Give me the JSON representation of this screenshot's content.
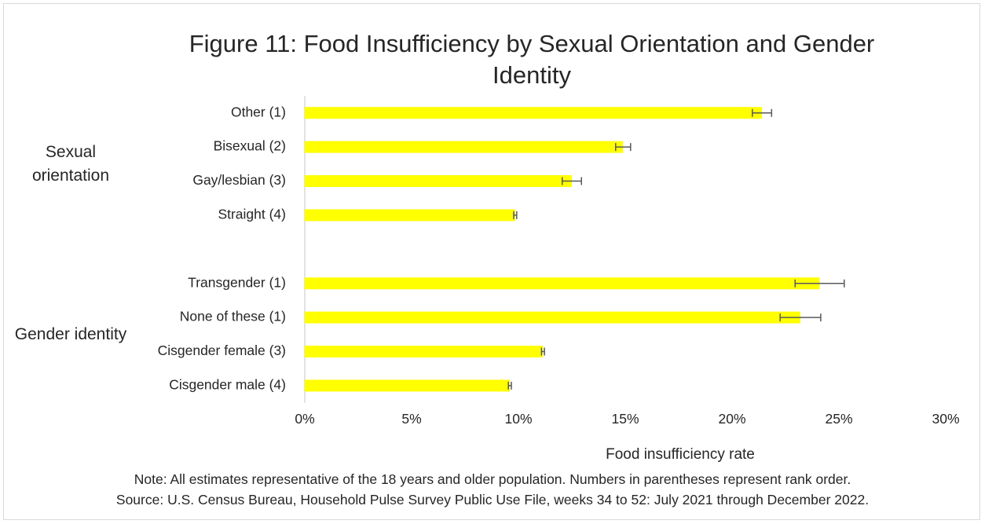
{
  "chart_data": {
    "type": "bar_error",
    "orientation": "horizontal",
    "title": "Figure 11: Food Insufficiency by Sexual Orientation and Gender Identity",
    "x_label": "Food insufficiency rate",
    "color": "#ffff00",
    "error_color": "#595959",
    "groups": [
      {
        "name": "Sexual orientation",
        "categories": [
          "Other (1)",
          "Bisexual (2)",
          "Gay/lesbian (3)",
          "Straight (4)"
        ],
        "values": [
          21.4,
          14.9,
          12.5,
          9.85
        ],
        "errors": [
          0.45,
          0.35,
          0.45,
          0.07
        ]
      },
      {
        "name": "Gender identity",
        "categories": [
          "Transgender (1)",
          "None of these (1)",
          "Cisgender female (3)",
          "Cisgender male (4)"
        ],
        "values": [
          24.1,
          23.2,
          11.15,
          9.6
        ],
        "errors": [
          1.15,
          0.95,
          0.07,
          0.07
        ]
      }
    ],
    "xlim": [
      0,
      30
    ],
    "xticks": [
      {
        "value": 0,
        "label": "0%"
      },
      {
        "value": 5,
        "label": "5%"
      },
      {
        "value": 10,
        "label": "10%"
      },
      {
        "value": 15,
        "label": "15%"
      },
      {
        "value": 20,
        "label": "20%"
      },
      {
        "value": 25,
        "label": "25%"
      },
      {
        "value": 30,
        "label": "30%"
      }
    ],
    "notes": [
      "Note: All estimates representative of the 18 years and older population. Numbers in parentheses represent rank order.",
      "Source: U.S. Census Bureau, Household Pulse Survey Public Use File, weeks 34 to 52: July 2021 through December 2022."
    ]
  }
}
